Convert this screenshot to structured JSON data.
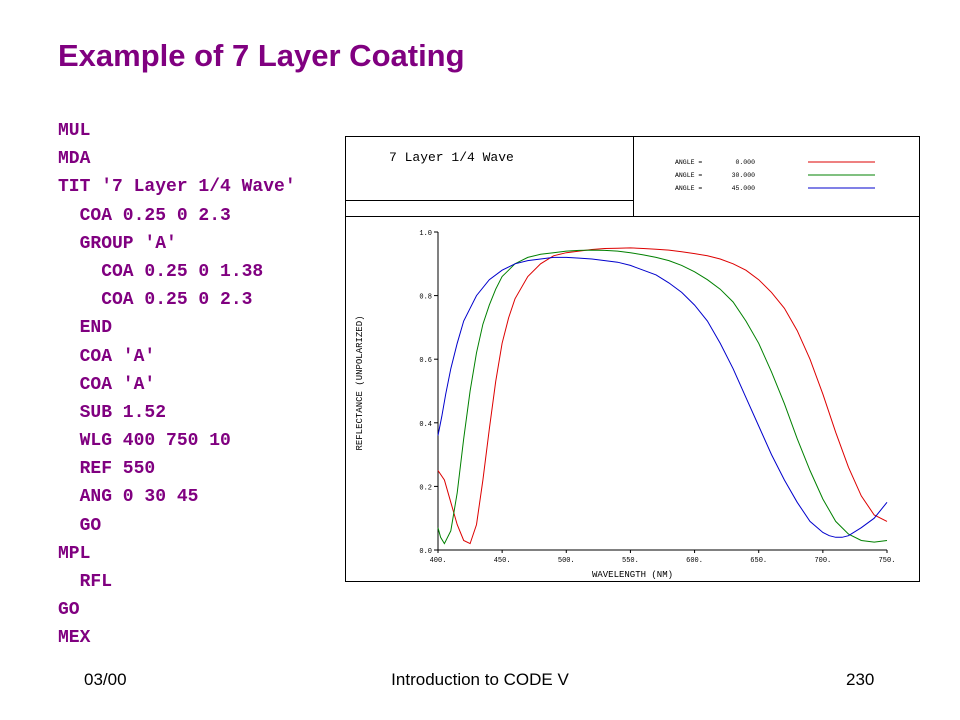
{
  "slide": {
    "title": "Example of 7 Layer Coating",
    "title_color": "#800080",
    "code_lines": [
      "MUL",
      "MDA",
      "TIT '7 Layer 1/4 Wave'",
      "  COA 0.25 0 2.3",
      "  GROUP 'A'",
      "    COA 0.25 0 1.38",
      "    COA 0.25 0 2.3",
      "  END",
      "  COA 'A'",
      "  COA 'A'",
      "  SUB 1.52",
      "  WLG 400 750 10",
      "  REF 550",
      "  ANG 0 30 45",
      "  GO",
      "MPL",
      "  RFL",
      "GO",
      "MEX"
    ]
  },
  "footer": {
    "left": "03/00",
    "center": "Introduction to CODE V",
    "right": "230"
  },
  "chart_data": {
    "type": "line",
    "title": "7 Layer 1/4 Wave",
    "xlabel": "WAVELENGTH (NM)",
    "ylabel": "REFLECTANCE (UNPOLARIZED)",
    "xlim": [
      400,
      750
    ],
    "ylim": [
      0.0,
      1.0
    ],
    "x_ticks": [
      400,
      450,
      500,
      550,
      600,
      650,
      700,
      750
    ],
    "x_tick_labels": [
      "400.",
      "450.",
      "500.",
      "550.",
      "600.",
      "650.",
      "700.",
      "750."
    ],
    "y_ticks": [
      0.0,
      0.2,
      0.4,
      0.6,
      0.8,
      1.0
    ],
    "y_tick_labels": [
      "0.0",
      "0.2",
      "0.4",
      "0.6",
      "0.8",
      "1.0"
    ],
    "grid": false,
    "legend_position": "top-right",
    "legend_entries": [
      {
        "label": "ANGLE =",
        "value": "0.000"
      },
      {
        "label": "ANGLE =",
        "value": "30.000"
      },
      {
        "label": "ANGLE =",
        "value": "45.000"
      }
    ],
    "series": [
      {
        "color": "#dd0000",
        "x": [
          400,
          405,
          410,
          415,
          420,
          425,
          430,
          435,
          440,
          445,
          450,
          455,
          460,
          470,
          480,
          490,
          500,
          510,
          520,
          530,
          540,
          550,
          560,
          570,
          580,
          590,
          600,
          610,
          620,
          630,
          640,
          650,
          660,
          670,
          680,
          690,
          700,
          710,
          720,
          730,
          740,
          750
        ],
        "y": [
          0.25,
          0.22,
          0.15,
          0.08,
          0.03,
          0.02,
          0.08,
          0.22,
          0.38,
          0.53,
          0.65,
          0.73,
          0.79,
          0.86,
          0.9,
          0.925,
          0.935,
          0.94,
          0.945,
          0.948,
          0.949,
          0.95,
          0.948,
          0.946,
          0.943,
          0.938,
          0.932,
          0.925,
          0.915,
          0.9,
          0.88,
          0.85,
          0.81,
          0.76,
          0.69,
          0.6,
          0.49,
          0.37,
          0.26,
          0.17,
          0.11,
          0.09
        ]
      },
      {
        "color": "#008000",
        "x": [
          400,
          402,
          405,
          410,
          415,
          420,
          425,
          430,
          435,
          440,
          445,
          450,
          455,
          460,
          465,
          470,
          480,
          490,
          500,
          510,
          520,
          530,
          540,
          550,
          560,
          570,
          580,
          590,
          600,
          610,
          620,
          630,
          640,
          650,
          660,
          670,
          680,
          690,
          700,
          710,
          720,
          730,
          740,
          750
        ],
        "y": [
          0.07,
          0.04,
          0.02,
          0.06,
          0.18,
          0.35,
          0.5,
          0.62,
          0.71,
          0.77,
          0.82,
          0.86,
          0.88,
          0.9,
          0.91,
          0.92,
          0.93,
          0.935,
          0.94,
          0.942,
          0.943,
          0.942,
          0.94,
          0.935,
          0.928,
          0.92,
          0.91,
          0.895,
          0.875,
          0.85,
          0.82,
          0.78,
          0.72,
          0.65,
          0.56,
          0.46,
          0.35,
          0.25,
          0.16,
          0.09,
          0.05,
          0.03,
          0.025,
          0.03
        ]
      },
      {
        "color": "#0000cc",
        "x": [
          400,
          403,
          406,
          410,
          415,
          420,
          425,
          430,
          440,
          450,
          460,
          470,
          480,
          490,
          500,
          510,
          520,
          530,
          540,
          550,
          560,
          570,
          580,
          590,
          600,
          610,
          620,
          630,
          640,
          650,
          660,
          670,
          680,
          690,
          700,
          705,
          710,
          715,
          720,
          730,
          740,
          750
        ],
        "y": [
          0.36,
          0.42,
          0.49,
          0.57,
          0.65,
          0.72,
          0.76,
          0.8,
          0.85,
          0.88,
          0.9,
          0.91,
          0.915,
          0.92,
          0.92,
          0.918,
          0.915,
          0.91,
          0.905,
          0.895,
          0.88,
          0.865,
          0.84,
          0.81,
          0.77,
          0.72,
          0.65,
          0.57,
          0.48,
          0.39,
          0.3,
          0.22,
          0.15,
          0.09,
          0.055,
          0.045,
          0.04,
          0.04,
          0.045,
          0.07,
          0.1,
          0.15
        ]
      }
    ]
  }
}
